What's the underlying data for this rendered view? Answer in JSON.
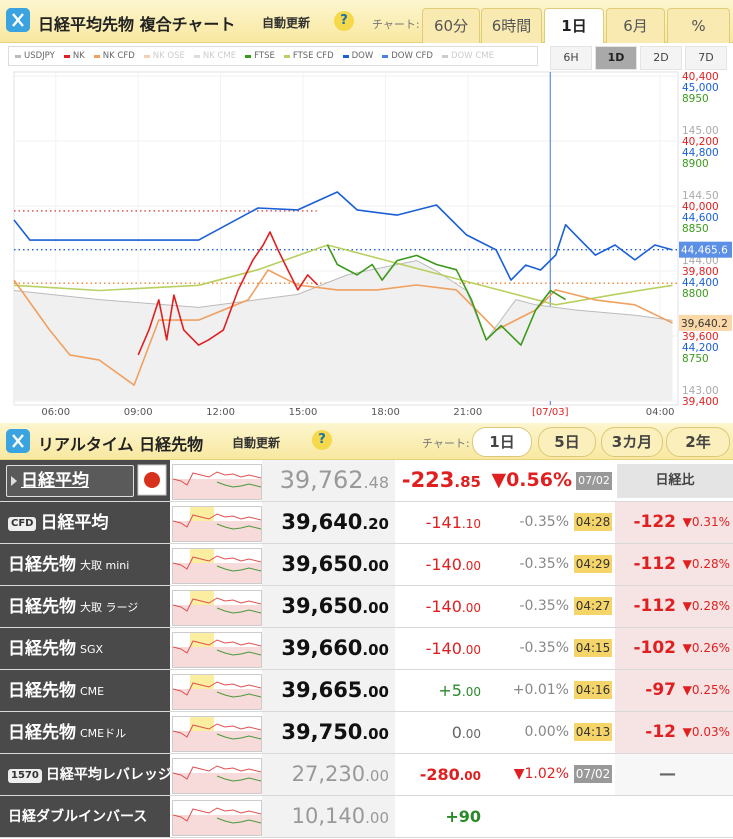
{
  "header": {
    "title": "日経平均先物 複合チャート",
    "auto_update": "自動更新",
    "help": "?",
    "chart_label": "チャート:",
    "range_buttons": [
      "60分",
      "6時間",
      "1日",
      "6月",
      "%"
    ],
    "active_range": 2,
    "span_buttons": [
      "6H",
      "1D",
      "2D",
      "7D"
    ],
    "active_span": 1
  },
  "chart_data": {
    "type": "line",
    "legend": [
      {
        "name": "USDJPY",
        "color": "#bbbbbb",
        "enabled": true
      },
      {
        "name": "NK",
        "color": "#e02020",
        "enabled": true
      },
      {
        "name": "NK CFD",
        "color": "#f0a060",
        "enabled": true
      },
      {
        "name": "NK OSE",
        "color": "#f5d0b0",
        "enabled": false
      },
      {
        "name": "NK CME",
        "color": "#dddddd",
        "enabled": false
      },
      {
        "name": "FTSE",
        "color": "#3a9a1a",
        "enabled": true
      },
      {
        "name": "FTSE CFD",
        "color": "#b8d060",
        "enabled": true
      },
      {
        "name": "DOW",
        "color": "#1a5fd6",
        "enabled": true
      },
      {
        "name": "DOW CFD",
        "color": "#4a80e0",
        "enabled": true
      },
      {
        "name": "DOW CME",
        "color": "#cccccc",
        "enabled": false
      }
    ],
    "xlim": [
      4.48,
      28.65
    ],
    "xticks": [
      {
        "value": 6,
        "label": "06:00"
      },
      {
        "value": 9,
        "label": "09:00"
      },
      {
        "value": 12,
        "label": "12:00"
      },
      {
        "value": 15,
        "label": "15:00"
      },
      {
        "value": 18,
        "label": "18:00"
      },
      {
        "value": 21,
        "label": "21:00"
      },
      {
        "value": 24,
        "label": "[07/03]"
      },
      {
        "value": 28,
        "label": "04:00"
      }
    ],
    "date_marker": 24,
    "ylim": [
      39400,
      40400
    ],
    "yticks": [
      {
        "value": 40400,
        "label": "40,400"
      },
      {
        "value": 40200,
        "label": "40,200"
      },
      {
        "value": 40000,
        "label": "40,000"
      },
      {
        "value": 39800,
        "label": "39,800"
      },
      {
        "value": 39600,
        "label": "39,600"
      },
      {
        "value": 39400,
        "label": "39,400"
      }
    ],
    "y2lim": [
      44000,
      45000
    ],
    "y2ticks": [
      {
        "value": 45000,
        "label": "45,000"
      },
      {
        "value": 44800,
        "label": "44,800"
      },
      {
        "value": 44600,
        "label": "44,600"
      },
      {
        "value": 44400,
        "label": "44,400"
      },
      {
        "value": 44200,
        "label": "44,200"
      }
    ],
    "y3lim": [
      8700,
      8950
    ],
    "y3ticks": [
      8950,
      8900,
      8850,
      8800,
      8750
    ],
    "y4lim": [
      143,
      145.5
    ],
    "y4ticks": [
      {
        "value": 145,
        "label": "145.00"
      },
      {
        "value": 144.5,
        "label": "144.50"
      },
      {
        "value": 144,
        "label": "144.00"
      },
      {
        "value": 143.5,
        "label": "143.50"
      },
      {
        "value": 143,
        "label": "143.00"
      }
    ],
    "axis_colors": {
      "y": "#e02020",
      "y2": "#1a5fd6",
      "y3": "#3a9a1a",
      "y4": "#aaaaaa"
    },
    "grid": true,
    "series": [
      {
        "name": "USDJPY",
        "axis": "y4",
        "color": "#bbbbbb",
        "area": true,
        "x": [
          4.48,
          7.59,
          11.2,
          14.81,
          16.61,
          18.42,
          19.14,
          19.86,
          20.95,
          21.67,
          22.75,
          23.47,
          24.92,
          27.08,
          28.45
        ],
        "values": [
          143.85,
          143.78,
          143.72,
          143.82,
          143.97,
          144.05,
          144.08,
          144.0,
          143.85,
          143.47,
          143.78,
          143.74,
          143.7,
          143.66,
          143.62
        ]
      },
      {
        "name": "FTSE CFD",
        "axis": "y3",
        "color": "#b8d060",
        "x": [
          4.48,
          7.59,
          11.2,
          13.36,
          15.89,
          24.2,
          26.36,
          28.45
        ],
        "values": [
          8789,
          8785,
          8789,
          8801,
          8820,
          8774,
          8782,
          8789
        ]
      },
      {
        "name": "NK CFD",
        "axis": "y",
        "color": "#f0a060",
        "x": [
          4.48,
          5.78,
          6.51,
          7.59,
          8.85,
          9.75,
          11.2,
          13.0,
          13.73,
          14.81,
          16.25,
          17.7,
          19.14,
          20.58,
          21.31,
          22.03,
          23.47,
          24.2,
          25.64,
          27.08,
          28.45
        ],
        "values": [
          39772,
          39618,
          39542,
          39526,
          39449,
          39649,
          39649,
          39711,
          39803,
          39757,
          39742,
          39742,
          39757,
          39742,
          39680,
          39618,
          39680,
          39742,
          39711,
          39696,
          39640
        ]
      },
      {
        "name": "DOW",
        "axis": "y2",
        "color": "#1a5fd6",
        "x": [
          4.48,
          5.06,
          7.59,
          11.2,
          13.36,
          14.81,
          16.25,
          16.97,
          18.42,
          19.86,
          20.95,
          22.03,
          22.57,
          23.11,
          23.65,
          24.2,
          24.56,
          25.1,
          25.64,
          26.36,
          27.08,
          27.81,
          28.45
        ],
        "values": [
          44557,
          44495,
          44495,
          44495,
          44594,
          44588,
          44643,
          44588,
          44572,
          44603,
          44511,
          44465,
          44372,
          44418,
          44403,
          44449,
          44542,
          44495,
          44449,
          44480,
          44434,
          44480,
          44465
        ]
      },
      {
        "name": "FTSE",
        "axis": "y3",
        "color": "#3a9a1a",
        "x": [
          15.89,
          16.25,
          16.97,
          17.52,
          17.88,
          18.42,
          19.14,
          19.86,
          20.58,
          21.13,
          21.67,
          22.21,
          22.93,
          23.47,
          24.01,
          24.56
        ],
        "values": [
          8820,
          8805,
          8797,
          8805,
          8793,
          8808,
          8812,
          8805,
          8801,
          8778,
          8747,
          8758,
          8743,
          8770,
          8785,
          8778
        ]
      },
      {
        "name": "NK",
        "axis": "y",
        "color": "#e02020",
        "x": [
          9.0,
          9.39,
          9.75,
          10.04,
          10.3,
          10.66,
          11.2,
          11.56,
          12.1,
          12.64,
          13.18,
          13.55,
          13.8,
          14.09,
          14.45,
          14.81,
          15.17,
          15.53
        ],
        "values": [
          39542,
          39618,
          39711,
          39588,
          39726,
          39618,
          39572,
          39588,
          39618,
          39742,
          39834,
          39880,
          39920,
          39865,
          39803,
          39742,
          39788,
          39757
        ]
      }
    ],
    "reference_lines": [
      {
        "axis": "y",
        "value": 39985,
        "color": "#e05050",
        "x_end": 15.5
      },
      {
        "axis": "y2",
        "value": 44465.6,
        "color": "#1a5fd6"
      },
      {
        "axis": "y",
        "value": 39762.48,
        "color": "#f08030"
      }
    ],
    "price_tags": [
      {
        "axis": "y2",
        "value": 44465.6,
        "label": "44,465.6",
        "color": "#5c8fe6",
        "text_color": "#ffffff"
      },
      {
        "axis": "y",
        "value": 39640.2,
        "label": "39,640.2",
        "color": "#fbd8a8",
        "text_color": "#333333"
      }
    ],
    "watermark": "https://nikkei225jp.com/cme/"
  },
  "realtime": {
    "title": "リアルタイム 日経先物",
    "auto_update": "自動更新",
    "help": "?",
    "chart_label": "チャート:",
    "range_buttons": [
      "1日",
      "5日",
      "3カ月",
      "2年"
    ],
    "active_range": 0,
    "index_row": {
      "name": "日経平均",
      "price_int": "39,762",
      "price_dec": ".48",
      "change_int": "-223",
      "change_dec": ".85",
      "pct": "▼0.56%",
      "time": "07/02",
      "diff_header": "日経比"
    },
    "rows": [
      {
        "badge": "CFD",
        "name": "日経平均",
        "price_int": "39,640",
        "price_dec": ".20",
        "change_int": "-141",
        "change_dec": ".10",
        "pct": "-0.35%",
        "time": "04:28",
        "diff": "-122",
        "diff_pct": "▼0.31%"
      },
      {
        "name": "日経先物",
        "sub": "大取 mini",
        "price_int": "39,650",
        "price_dec": ".00",
        "change_int": "-140",
        "change_dec": ".00",
        "pct": "-0.35%",
        "time": "04:29",
        "diff": "-112",
        "diff_pct": "▼0.28%"
      },
      {
        "name": "日経先物",
        "sub": "大取 ラージ",
        "price_int": "39,650",
        "price_dec": ".00",
        "change_int": "-140",
        "change_dec": ".00",
        "pct": "-0.35%",
        "time": "04:27",
        "diff": "-112",
        "diff_pct": "▼0.28%"
      },
      {
        "name": "日経先物",
        "sub": "SGX",
        "price_int": "39,660",
        "price_dec": ".00",
        "change_int": "-140",
        "change_dec": ".00",
        "pct": "-0.35%",
        "time": "04:15",
        "diff": "-102",
        "diff_pct": "▼0.26%"
      },
      {
        "name": "日経先物",
        "sub": "CME",
        "price_int": "39,665",
        "price_dec": ".00",
        "change_int": "+5",
        "change_dec": ".00",
        "pct": "+0.01%",
        "time": "04:16",
        "diff": "-97",
        "diff_pct": "▼0.25%"
      },
      {
        "name": "日経先物",
        "sub": "CMEドル",
        "price_int": "39,750",
        "price_dec": ".00",
        "change_int": "0",
        "change_dec": ".00",
        "pct": "0.00%",
        "time": "04:13",
        "diff": "-12",
        "diff_pct": "▼0.03%"
      },
      {
        "badge": "1570",
        "name": "日経平均レバレッジ",
        "price_int": "27,230",
        "price_dec": ".00",
        "change_int": "-280",
        "change_dec": ".00",
        "pct": "▼1.02%",
        "time": "07/02",
        "diff": "—",
        "muted": true
      },
      {
        "name": "日経ダブルインバース",
        "price_int": "10,140",
        "price_dec": ".00",
        "change_int": "+90",
        "muted": true
      }
    ]
  }
}
